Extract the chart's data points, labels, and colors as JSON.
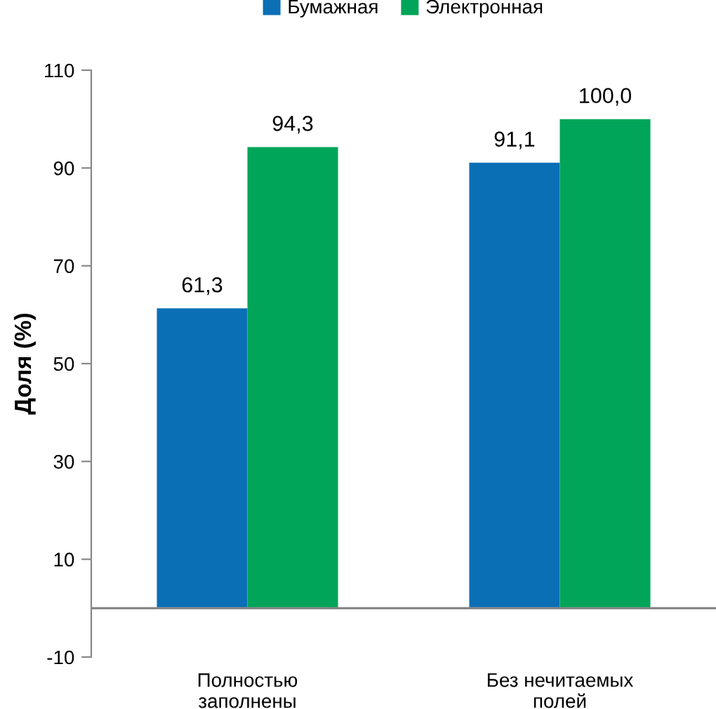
{
  "chart_data": {
    "type": "bar",
    "ylabel": "Доля (%)",
    "categories": [
      "Полностью\nзаполнены",
      "Без нечитаемых\nполей"
    ],
    "series": [
      {
        "name": "Бумажная",
        "color": "#0b6fb6",
        "values": [
          61.3,
          91.1
        ],
        "value_labels": [
          "61,3",
          "91,1"
        ]
      },
      {
        "name": "Электронная",
        "color": "#00a559",
        "values": [
          94.3,
          100.0
        ],
        "value_labels": [
          "94,3",
          "100,0"
        ]
      }
    ],
    "ylim": [
      -10,
      110
    ],
    "yticks": [
      -10,
      10,
      30,
      50,
      70,
      90,
      110
    ],
    "grid": false,
    "legend": "top"
  }
}
